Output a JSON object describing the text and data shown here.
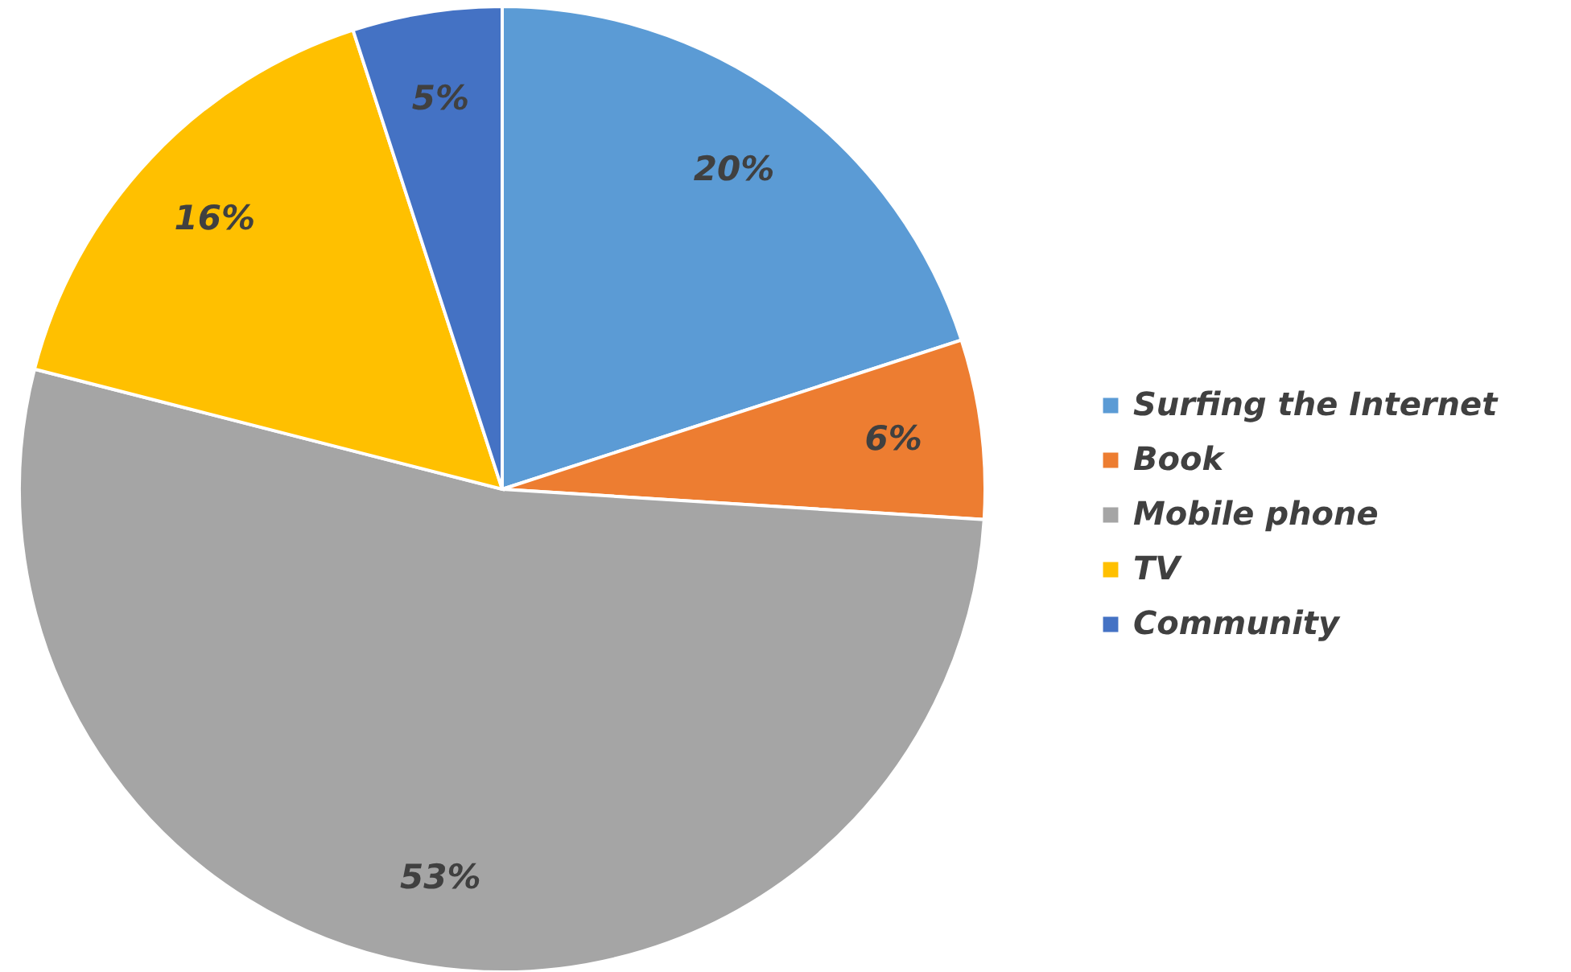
{
  "chart_data": {
    "type": "pie",
    "categories": [
      "Surfing the Internet",
      "Book",
      "Mobile phone",
      "TV",
      "Community"
    ],
    "values": [
      20,
      6,
      53,
      16,
      5
    ],
    "value_labels": [
      "20%",
      "6%",
      "53%",
      "16%",
      "5%"
    ],
    "colors": [
      "#5b9bd5",
      "#ed7d31",
      "#a5a5a5",
      "#ffc000",
      "#4472c4"
    ],
    "legend": "right"
  }
}
